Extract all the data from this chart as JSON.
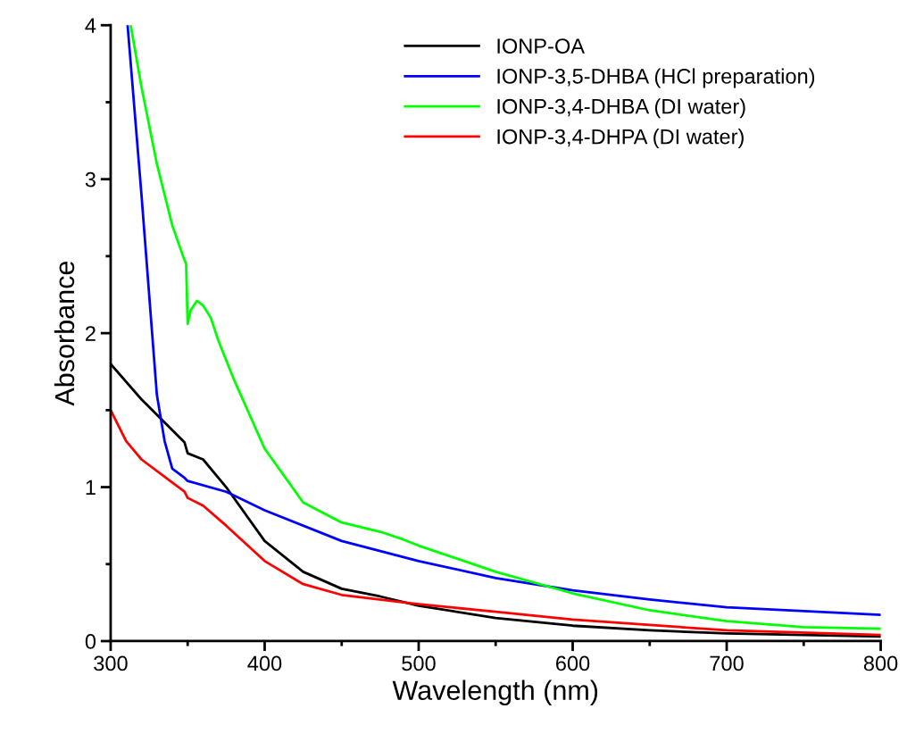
{
  "chart_data": {
    "type": "line",
    "xlabel": "Wavelength (nm)",
    "ylabel": "Absorbance",
    "xlim": [
      300,
      800
    ],
    "xticks": [
      300,
      400,
      500,
      600,
      700,
      800
    ],
    "ylim": [
      0,
      4
    ],
    "yticks": [
      0,
      1,
      2,
      3,
      4
    ],
    "grid": false,
    "legend": "top right",
    "marker": "none",
    "line_style": "solid",
    "series": [
      {
        "name": "IONP-OA",
        "color": "#000000",
        "x": [
          300,
          320,
          348,
          350,
          360,
          375,
          400,
          425,
          450,
          475,
          500,
          550,
          600,
          650,
          700,
          800
        ],
        "values": [
          1.8,
          1.57,
          1.29,
          1.22,
          1.18,
          1.0,
          0.65,
          0.45,
          0.34,
          0.29,
          0.23,
          0.15,
          0.1,
          0.07,
          0.05,
          0.03
        ]
      },
      {
        "name": "IONP-3,5-DHBA (HCl preparation)",
        "color": "#0000ff",
        "x": [
          311,
          320,
          330,
          335,
          340,
          348,
          350,
          375,
          400,
          450,
          500,
          550,
          600,
          650,
          700,
          800
        ],
        "values": [
          4.0,
          2.9,
          1.6,
          1.3,
          1.12,
          1.06,
          1.04,
          0.97,
          0.85,
          0.65,
          0.52,
          0.41,
          0.33,
          0.27,
          0.22,
          0.17
        ]
      },
      {
        "name": "IONP-3,4-DHBA (DI water)",
        "color": "#00ff00",
        "x": [
          313,
          320,
          330,
          340,
          347,
          349,
          350,
          352,
          356,
          360,
          365,
          370,
          380,
          400,
          425,
          450,
          475,
          490,
          500,
          550,
          600,
          650,
          700,
          750,
          800
        ],
        "values": [
          4.0,
          3.6,
          3.1,
          2.7,
          2.5,
          2.45,
          2.06,
          2.15,
          2.21,
          2.18,
          2.1,
          1.95,
          1.7,
          1.25,
          0.9,
          0.77,
          0.71,
          0.66,
          0.62,
          0.45,
          0.31,
          0.2,
          0.13,
          0.09,
          0.08
        ]
      },
      {
        "name": "IONP-3,4-DHPA (DI water)",
        "color": "#ff0000",
        "x": [
          300,
          310,
          320,
          340,
          348,
          350,
          360,
          375,
          400,
          425,
          450,
          500,
          550,
          600,
          700,
          800
        ],
        "values": [
          1.5,
          1.3,
          1.18,
          1.03,
          0.97,
          0.93,
          0.88,
          0.75,
          0.52,
          0.37,
          0.3,
          0.24,
          0.19,
          0.14,
          0.07,
          0.04
        ]
      }
    ]
  }
}
